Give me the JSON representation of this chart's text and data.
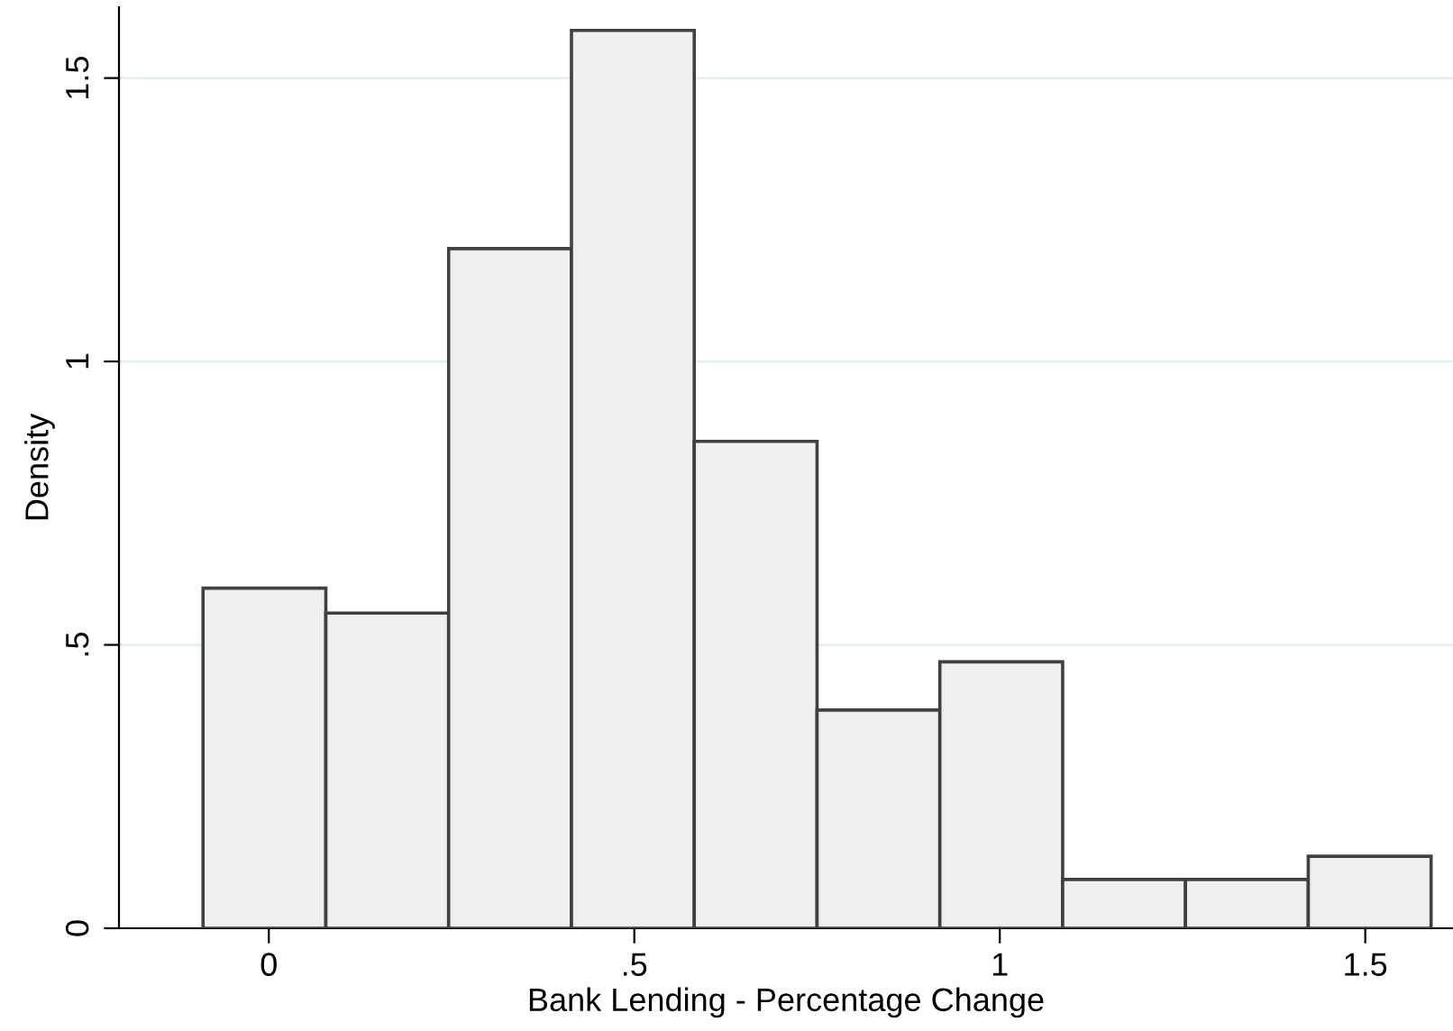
{
  "chart_data": {
    "type": "histogram",
    "xlabel": "Bank Lending - Percentage Change",
    "ylabel": "Density",
    "bins": [
      -0.09,
      0.078,
      0.246,
      0.414,
      0.582,
      0.75,
      0.918,
      1.086,
      1.254,
      1.422,
      1.59
    ],
    "values": [
      0.6,
      0.556,
      1.199,
      1.584,
      0.859,
      0.385,
      0.47,
      0.086,
      0.086,
      0.127
    ],
    "color": "#efefef",
    "xlim": [
      -0.205,
      1.62
    ],
    "ylim": [
      0,
      1.625
    ],
    "xticks": [
      0,
      {
        "value": 0.5,
        "label": ".5"
      },
      1,
      1.5
    ],
    "yticks": [
      0,
      {
        "value": 0.5,
        "label": ".5"
      },
      1,
      1.5
    ],
    "grid": "y"
  }
}
